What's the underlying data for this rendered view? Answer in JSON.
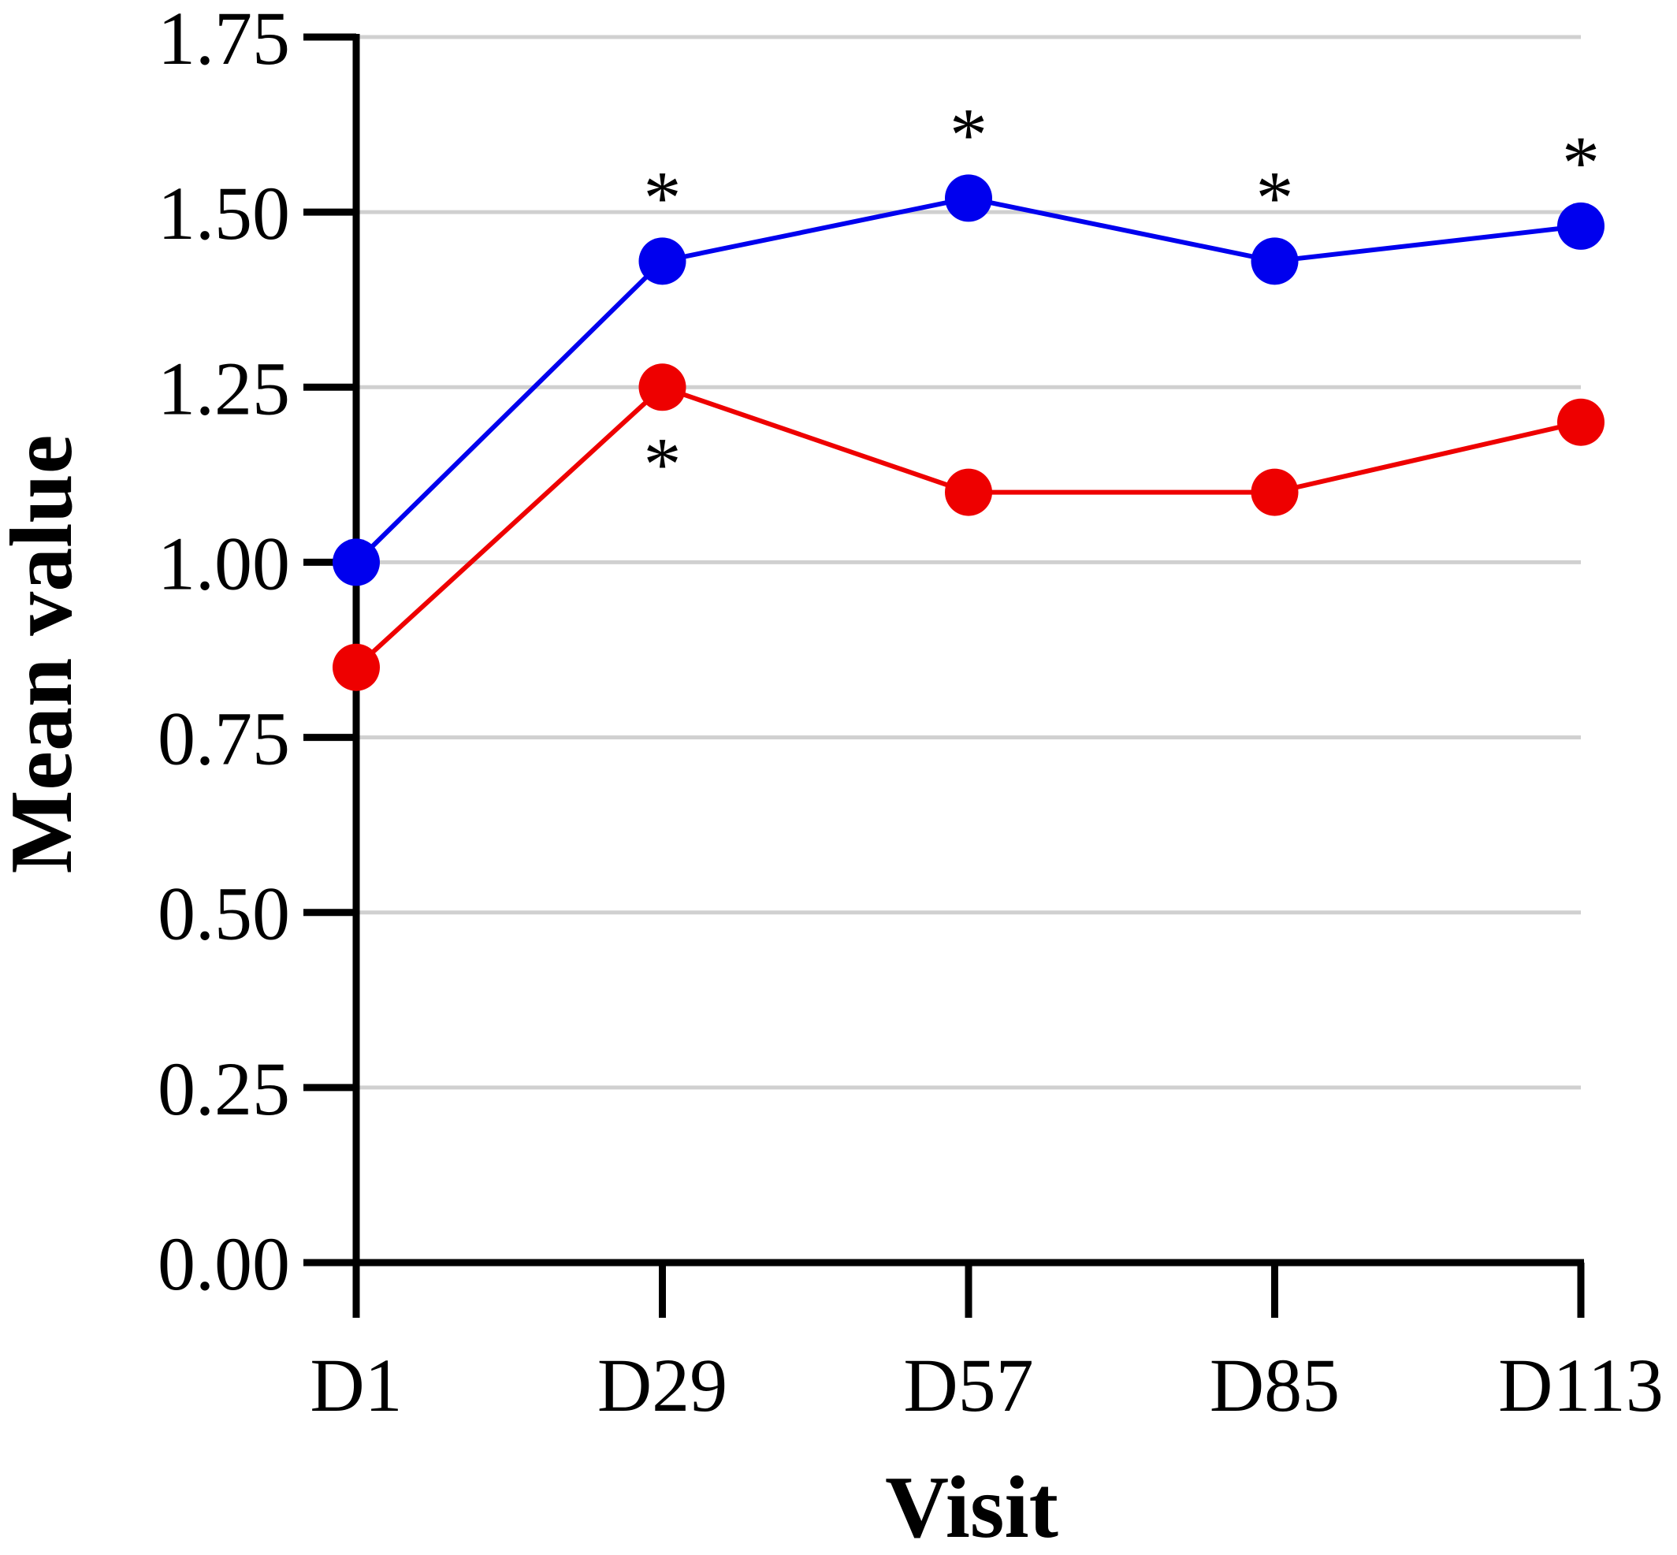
{
  "chart_data": {
    "type": "line",
    "title": "",
    "xlabel": "Visit",
    "ylabel": "Mean value",
    "categories": [
      "D1",
      "D29",
      "D57",
      "D85",
      "D113"
    ],
    "ylim": [
      0,
      1.75
    ],
    "yticks": [
      "0.00",
      "0.25",
      "0.50",
      "0.75",
      "1.00",
      "1.25",
      "1.50",
      "1.75"
    ],
    "grid": "horizontal",
    "series": [
      {
        "color": "#0000ee",
        "values": [
          1.0,
          1.43,
          1.52,
          1.43,
          1.48
        ],
        "annotations": [
          "",
          "*",
          "*",
          "*",
          "*"
        ],
        "annotation_position": "above"
      },
      {
        "color": "#ee0000",
        "values": [
          0.85,
          1.25,
          1.1,
          1.1,
          1.2
        ],
        "annotations": [
          "",
          "*",
          "",
          "",
          ""
        ],
        "annotation_position": "below"
      }
    ]
  }
}
